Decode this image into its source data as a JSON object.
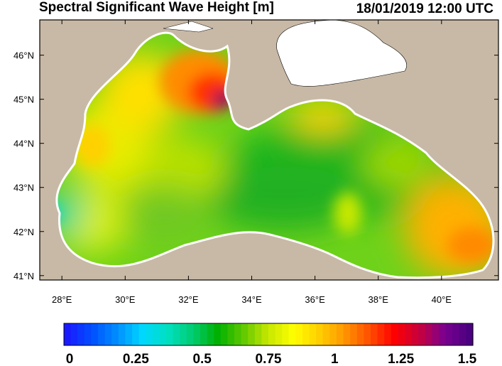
{
  "header": {
    "title": "Spectral Significant Wave Height [m]",
    "timestamp": "18/01/2019 12:00 UTC"
  },
  "map": {
    "region": "Black Sea",
    "lon_range": [
      27.3,
      41.8
    ],
    "lat_range": [
      40.9,
      46.8
    ],
    "land_color": "#c8b9a6",
    "lon_ticks": [
      "28°E",
      "30°E",
      "32°E",
      "34°E",
      "36°E",
      "38°E",
      "40°E"
    ],
    "lat_ticks": [
      "41°N",
      "42°N",
      "43°N",
      "44°N",
      "45°N",
      "46°N"
    ]
  },
  "colorbar": {
    "min": 0,
    "max": 1.5,
    "labels": [
      "0",
      "0.25",
      "0.5",
      "0.75",
      "1",
      "1.25",
      "1.5"
    ],
    "colors": [
      "#1a1aff",
      "#0050ff",
      "#0090ff",
      "#00d8ff",
      "#00e0c0",
      "#00cc70",
      "#00b000",
      "#60c800",
      "#c8e800",
      "#ffff00",
      "#ffd000",
      "#ff9800",
      "#ff5000",
      "#ff0000",
      "#c8003c",
      "#7a0090",
      "#4a0080"
    ]
  }
}
